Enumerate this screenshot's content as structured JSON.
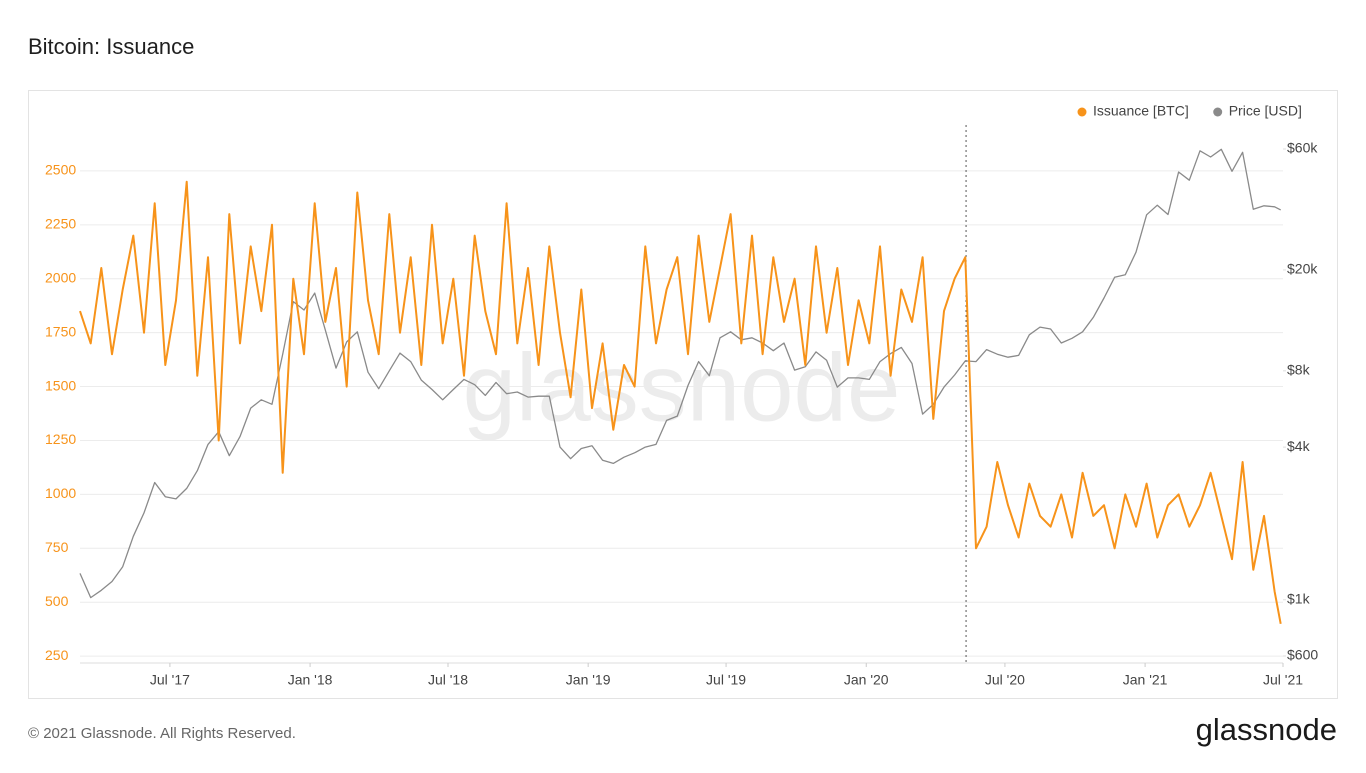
{
  "chart_data": {
    "type": "line",
    "title": "Bitcoin: Issuance",
    "watermark": "glassnode",
    "legend": "top-right",
    "grid": true,
    "vline": "2020-05-11",
    "xlim": [
      "2017-03-05",
      "2021-07-01"
    ],
    "xticks": [
      {
        "value": "2017-07-01",
        "label": "Jul '17"
      },
      {
        "value": "2018-01-01",
        "label": "Jan '18"
      },
      {
        "value": "2018-07-01",
        "label": "Jul '18"
      },
      {
        "value": "2019-01-01",
        "label": "Jan '19"
      },
      {
        "value": "2019-07-01",
        "label": "Jul '19"
      },
      {
        "value": "2020-01-01",
        "label": "Jan '20"
      },
      {
        "value": "2020-07-01",
        "label": "Jul '20"
      },
      {
        "value": "2021-01-01",
        "label": "Jan '21"
      },
      {
        "value": "2021-07-01",
        "label": "Jul '21"
      }
    ],
    "ylim": [
      218,
      2713
    ],
    "yticks": [
      250,
      500,
      750,
      1000,
      1250,
      1500,
      1750,
      2000,
      2250,
      2500
    ],
    "y2lim": [
      563,
      74600
    ],
    "y2scale": "log",
    "y2ticks": [
      {
        "value": 600,
        "label": "$600"
      },
      {
        "value": 1000,
        "label": "$1k"
      },
      {
        "value": 4000,
        "label": "$4k"
      },
      {
        "value": 8000,
        "label": "$8k"
      },
      {
        "value": 20000,
        "label": "$20k"
      },
      {
        "value": 60000,
        "label": "$60k"
      }
    ],
    "x": [
      "2017-03-05",
      "2017-03-19",
      "2017-04-02",
      "2017-04-16",
      "2017-04-30",
      "2017-05-14",
      "2017-05-28",
      "2017-06-11",
      "2017-06-25",
      "2017-07-09",
      "2017-07-23",
      "2017-08-06",
      "2017-08-20",
      "2017-09-03",
      "2017-09-17",
      "2017-10-01",
      "2017-10-15",
      "2017-10-29",
      "2017-11-12",
      "2017-11-26",
      "2017-12-10",
      "2017-12-24",
      "2018-01-07",
      "2018-01-21",
      "2018-02-04",
      "2018-02-18",
      "2018-03-04",
      "2018-03-18",
      "2018-04-01",
      "2018-04-15",
      "2018-04-29",
      "2018-05-13",
      "2018-05-27",
      "2018-06-10",
      "2018-06-24",
      "2018-07-08",
      "2018-07-22",
      "2018-08-05",
      "2018-08-19",
      "2018-09-02",
      "2018-09-16",
      "2018-09-30",
      "2018-10-14",
      "2018-10-28",
      "2018-11-11",
      "2018-11-25",
      "2018-12-09",
      "2018-12-23",
      "2019-01-06",
      "2019-01-20",
      "2019-02-03",
      "2019-02-17",
      "2019-03-03",
      "2019-03-17",
      "2019-03-31",
      "2019-04-14",
      "2019-04-28",
      "2019-05-12",
      "2019-05-26",
      "2019-06-09",
      "2019-06-23",
      "2019-07-07",
      "2019-07-21",
      "2019-08-04",
      "2019-08-18",
      "2019-09-01",
      "2019-09-15",
      "2019-09-29",
      "2019-10-13",
      "2019-10-27",
      "2019-11-10",
      "2019-11-24",
      "2019-12-08",
      "2019-12-22",
      "2020-01-05",
      "2020-01-19",
      "2020-02-02",
      "2020-02-16",
      "2020-03-01",
      "2020-03-15",
      "2020-03-29",
      "2020-04-12",
      "2020-04-26",
      "2020-05-10",
      "2020-05-24",
      "2020-06-07",
      "2020-06-21",
      "2020-07-05",
      "2020-07-19",
      "2020-08-02",
      "2020-08-16",
      "2020-08-30",
      "2020-09-13",
      "2020-09-27",
      "2020-10-11",
      "2020-10-25",
      "2020-11-08",
      "2020-11-22",
      "2020-12-06",
      "2020-12-20",
      "2021-01-03",
      "2021-01-17",
      "2021-01-31",
      "2021-02-14",
      "2021-02-28",
      "2021-03-14",
      "2021-03-28",
      "2021-04-11",
      "2021-04-25",
      "2021-05-09",
      "2021-05-23",
      "2021-06-06",
      "2021-06-20",
      "2021-06-28"
    ],
    "series": [
      {
        "name": "Issuance [BTC]",
        "color": "#f7931a",
        "axis": "y",
        "values": [
          1850,
          1700,
          2050,
          1650,
          1950,
          2200,
          1750,
          2350,
          1600,
          1900,
          2450,
          1550,
          2100,
          1250,
          2300,
          1700,
          2150,
          1850,
          2250,
          1100,
          2000,
          1650,
          2350,
          1800,
          2050,
          1500,
          2400,
          1900,
          1650,
          2300,
          1750,
          2100,
          1600,
          2250,
          1700,
          2000,
          1550,
          2200,
          1850,
          1650,
          2350,
          1700,
          2050,
          1600,
          2150,
          1750,
          1450,
          1950,
          1400,
          1700,
          1300,
          1600,
          1500,
          2150,
          1700,
          1950,
          2100,
          1650,
          2200,
          1800,
          2050,
          2300,
          1700,
          2200,
          1650,
          2100,
          1800,
          2000,
          1600,
          2150,
          1750,
          2050,
          1600,
          1900,
          1700,
          2150,
          1550,
          1950,
          1800,
          2100,
          1350,
          1850,
          2000,
          2100,
          750,
          850,
          1150,
          950,
          800,
          1050,
          900,
          850,
          1000,
          800,
          1100,
          900,
          950,
          750,
          1000,
          850,
          1050,
          800,
          950,
          1000,
          850,
          950,
          1100,
          900,
          700,
          1150,
          650,
          900,
          550,
          400
        ]
      },
      {
        "name": "Price [USD]",
        "color": "#8a8a8a",
        "axis": "y2",
        "values": [
          1270,
          1020,
          1090,
          1180,
          1350,
          1780,
          2200,
          2900,
          2550,
          2500,
          2750,
          3230,
          4100,
          4600,
          3700,
          4400,
          5700,
          6150,
          5900,
          9300,
          15000,
          13900,
          16200,
          11600,
          8200,
          10400,
          11400,
          7900,
          6800,
          8000,
          9400,
          8700,
          7350,
          6750,
          6150,
          6750,
          7400,
          7050,
          6400,
          7200,
          6500,
          6600,
          6300,
          6350,
          6350,
          4000,
          3600,
          3950,
          4050,
          3550,
          3450,
          3650,
          3800,
          4000,
          4100,
          5100,
          5300,
          7000,
          8700,
          7650,
          10800,
          11400,
          10600,
          10800,
          10300,
          9600,
          10300,
          8050,
          8300,
          9500,
          8800,
          6900,
          7500,
          7500,
          7400,
          8700,
          9350,
          9900,
          8550,
          5400,
          5900,
          6900,
          7700,
          8750,
          8700,
          9700,
          9300,
          9050,
          9200,
          11100,
          11900,
          11700,
          10300,
          10750,
          11400,
          13000,
          15500,
          18700,
          19150,
          23500,
          33000,
          36000,
          33100,
          48700,
          45200,
          59000,
          55800,
          59800,
          49000,
          58200,
          34700,
          35800,
          35500,
          34500
        ]
      }
    ]
  },
  "footer": {
    "copyright": "© 2021 Glassnode. All Rights Reserved.",
    "logo": "glassnode"
  }
}
